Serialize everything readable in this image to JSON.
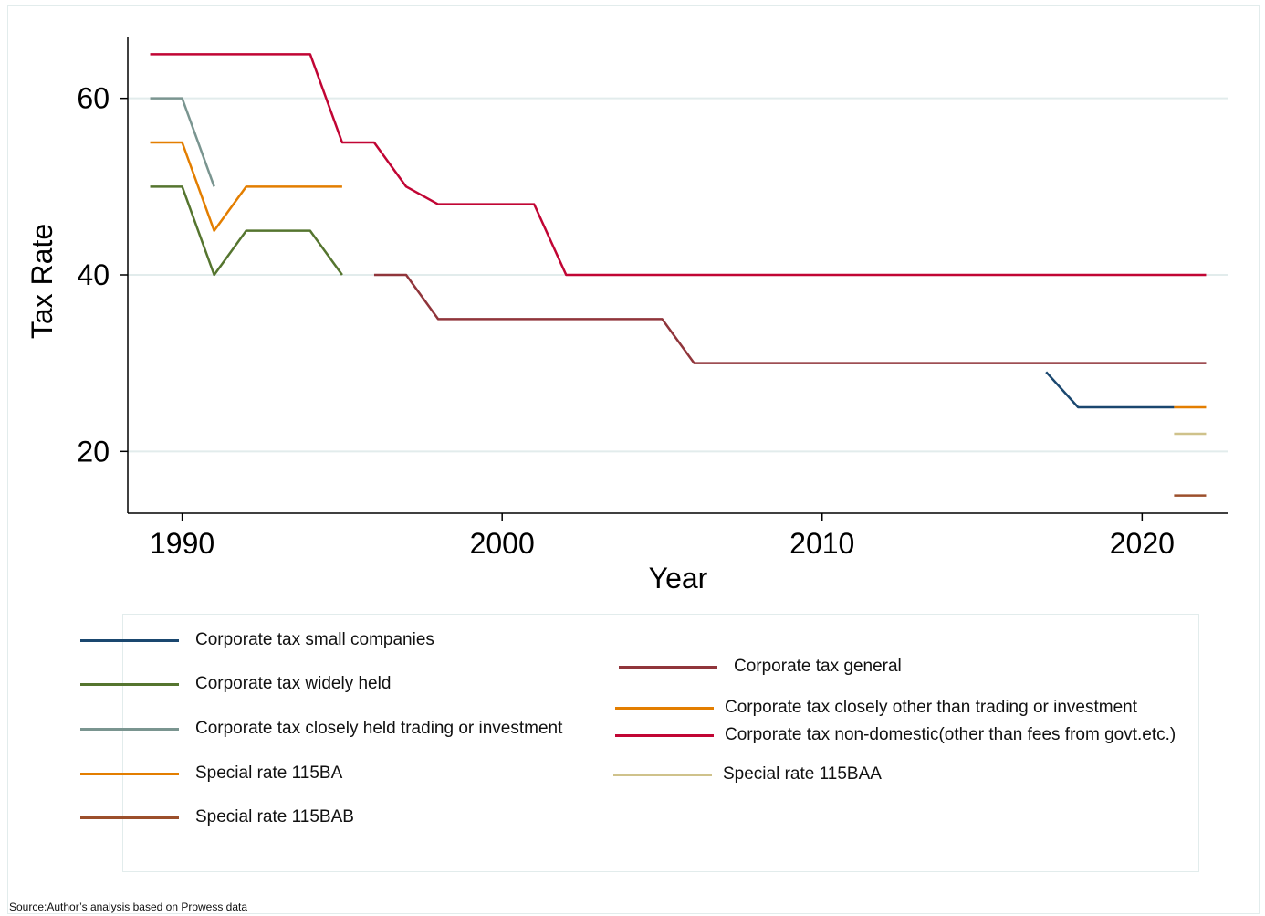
{
  "chart_data": {
    "type": "line",
    "xlabel": "Year",
    "ylabel": "Tax Rate",
    "xlim": [
      1988.3,
      2022.7
    ],
    "ylim": [
      13,
      67
    ],
    "xticks": [
      1990,
      2000,
      2010,
      2020
    ],
    "yticks": [
      20,
      40,
      60
    ],
    "grid": "horizontal",
    "legend_position": "bottom",
    "series": [
      {
        "key": "small",
        "name": "Corporate tax small companies",
        "color": "#1a476f",
        "points": [
          [
            2017,
            29
          ],
          [
            2018,
            25
          ],
          [
            2019,
            25
          ],
          [
            2020,
            25
          ],
          [
            2021,
            25
          ]
        ]
      },
      {
        "key": "widely",
        "name": "Corporate tax widely held",
        "color": "#55752f",
        "points": [
          [
            1989,
            50
          ],
          [
            1990,
            50
          ],
          [
            1991,
            40
          ],
          [
            1992,
            45
          ],
          [
            1993,
            45
          ],
          [
            1994,
            45
          ],
          [
            1995,
            40
          ]
        ]
      },
      {
        "key": "closely_trading",
        "name": "Corporate tax closely held trading or investment",
        "color": "#7a9590",
        "points": [
          [
            1989,
            60
          ],
          [
            1990,
            60
          ],
          [
            1991,
            50
          ]
        ]
      },
      {
        "key": "sp115ba",
        "name": "Special rate 115BA",
        "color": "#e37e00",
        "points": [
          [
            1989,
            55
          ],
          [
            1990,
            55
          ],
          [
            1991,
            45
          ],
          [
            1992,
            50
          ],
          [
            1993,
            50
          ],
          [
            1994,
            50
          ],
          [
            1995,
            50
          ]
        ]
      },
      {
        "key": "sp115bab",
        "name": "Special rate 115BAB",
        "color": "#9c4f2b",
        "points": [
          [
            2021,
            15
          ],
          [
            2022,
            15
          ]
        ]
      },
      {
        "key": "general",
        "name": "Corporate tax general",
        "color": "#90353b",
        "points": [
          [
            1996,
            40
          ],
          [
            1997,
            40
          ],
          [
            1998,
            35
          ],
          [
            2005,
            35
          ],
          [
            2006,
            30
          ],
          [
            2022,
            30
          ]
        ]
      },
      {
        "key": "closely_other",
        "name": "Corporate tax closely other than trading or investment",
        "color": "#e37e00",
        "points": [
          [
            2021,
            25
          ],
          [
            2022,
            25
          ]
        ]
      },
      {
        "key": "nondomestic",
        "name": "Corporate tax non-domestic(other than fees from govt.etc.)",
        "color": "#c10534",
        "points": [
          [
            1989,
            65
          ],
          [
            1994,
            65
          ],
          [
            1995,
            55
          ],
          [
            1996,
            55
          ],
          [
            1997,
            50
          ],
          [
            1998,
            48
          ],
          [
            2001,
            48
          ],
          [
            2002,
            40
          ],
          [
            2022,
            40
          ]
        ]
      },
      {
        "key": "sp115baa",
        "name": "Special rate 115BAA",
        "color": "#cfc28b",
        "points": [
          [
            2021,
            22
          ],
          [
            2022,
            22
          ]
        ]
      }
    ]
  },
  "source_note": "Source:Author’s analysis based on Prowess data"
}
